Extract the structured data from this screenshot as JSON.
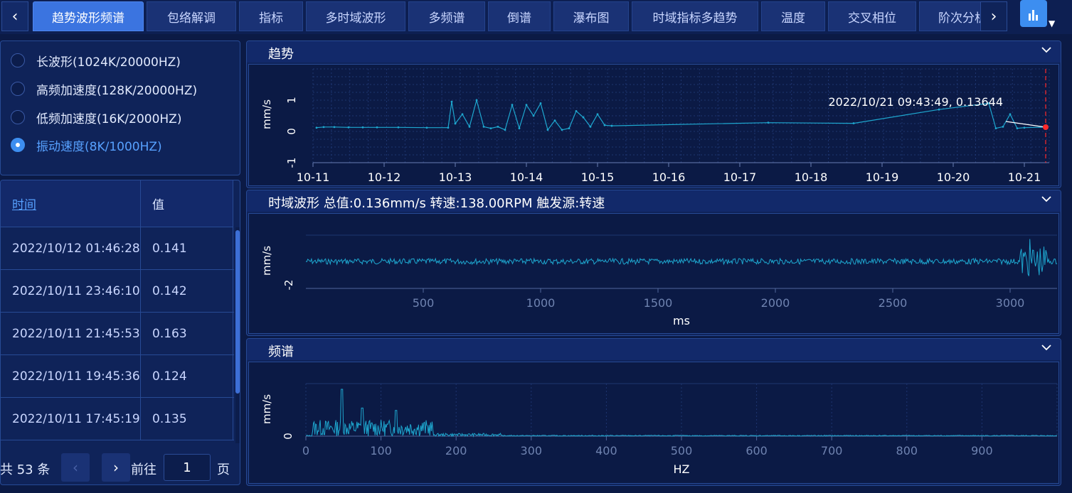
{
  "tabs": {
    "prev_arrow": "‹",
    "next_arrow": "›",
    "items": [
      {
        "label": "趋势波形频谱",
        "active": true
      },
      {
        "label": "包络解调"
      },
      {
        "label": "指标"
      },
      {
        "label": "多时域波形"
      },
      {
        "label": "多频谱"
      },
      {
        "label": "倒谱"
      },
      {
        "label": "瀑布图"
      },
      {
        "label": "时域指标多趋势"
      },
      {
        "label": "温度"
      },
      {
        "label": "交叉相位"
      },
      {
        "label": "阶次分析"
      }
    ],
    "menu_icon": "bar-chart-icon"
  },
  "radios": [
    {
      "label": "长波形(1024K/20000HZ)",
      "checked": false
    },
    {
      "label": "高频加速度(128K/20000HZ)",
      "checked": false
    },
    {
      "label": "低频加速度(16K/2000HZ)",
      "checked": false
    },
    {
      "label": "振动速度(8K/1000HZ)",
      "checked": true
    }
  ],
  "table": {
    "headers": {
      "time": "时间",
      "value": "值"
    },
    "rows": [
      {
        "time": "2022/10/12 01:46:28",
        "value": "0.141"
      },
      {
        "time": "2022/10/11 23:46:10",
        "value": "0.142"
      },
      {
        "time": "2022/10/11 21:45:53",
        "value": "0.163"
      },
      {
        "time": "2022/10/11 19:45:36",
        "value": "0.124"
      },
      {
        "time": "2022/10/11 17:45:19",
        "value": "0.135"
      }
    ]
  },
  "pager": {
    "total": "共 53 条",
    "prev": "‹",
    "next": "›",
    "goto": "前往",
    "page": "1",
    "unit": "页"
  },
  "sections": {
    "trend": {
      "title": "趋势"
    },
    "waveform": {
      "title": "时域波形 总值:0.136mm/s 转速:138.00RPM 触发源:转速"
    },
    "spectrum": {
      "title": "频谱"
    }
  },
  "chart_data": [
    {
      "type": "line",
      "title": "趋势",
      "ylabel": "mm/s",
      "ylim": [
        -1,
        2
      ],
      "yticks": [
        "-1",
        "0",
        "1"
      ],
      "xticks": [
        "10-11",
        "10-12",
        "10-13",
        "10-14",
        "10-15",
        "10-16",
        "10-17",
        "10-18",
        "10-19",
        "10-20",
        "10-21"
      ],
      "x": [
        0.05,
        0.15,
        0.3,
        0.5,
        0.7,
        0.9,
        1.2,
        1.6,
        1.9,
        1.95,
        2.0,
        2.1,
        2.2,
        2.3,
        2.4,
        2.5,
        2.6,
        2.7,
        2.8,
        2.9,
        3.0,
        3.1,
        3.2,
        3.3,
        3.4,
        3.5,
        3.6,
        3.7,
        3.8,
        3.9,
        4.0,
        4.1,
        4.2,
        6.4,
        7.6,
        8.8,
        9.5,
        9.6,
        9.7,
        9.8,
        9.9,
        10.0,
        10.3
      ],
      "y": [
        0.12,
        0.14,
        0.14,
        0.13,
        0.13,
        0.13,
        0.13,
        0.12,
        0.12,
        0.95,
        0.25,
        0.55,
        0.15,
        1.0,
        0.15,
        0.1,
        0.15,
        0.05,
        0.85,
        0.1,
        0.85,
        0.5,
        0.9,
        0.05,
        0.35,
        0.05,
        0.1,
        0.65,
        0.45,
        0.15,
        0.55,
        0.2,
        0.18,
        0.28,
        0.26,
        0.7,
        0.9,
        0.1,
        0.15,
        0.55,
        0.1,
        0.12,
        0.13644
      ],
      "marker": {
        "label": "2022/10/21 09:43:49, 0.13644",
        "x": 10.3,
        "y": 0.13644,
        "color": "#ff2a2a"
      },
      "series_color": "#1ea7cf"
    },
    {
      "type": "line",
      "title": "时域波形",
      "xlabel": "ms",
      "ylabel": "mm/s",
      "yticks": [
        "-2"
      ],
      "xticks": [
        "500",
        "1000",
        "1500",
        "2000",
        "2500",
        "3000"
      ],
      "xlim": [
        0,
        3200
      ],
      "note": "noise-like waveform around 0 with burst near 3050-3150 ms",
      "series_color": "#1ea7cf"
    },
    {
      "type": "line",
      "title": "频谱",
      "xlabel": "HZ",
      "ylabel": "mm/s",
      "yticks": [
        "0"
      ],
      "xticks": [
        "0",
        "100",
        "200",
        "300",
        "400",
        "500",
        "600",
        "700",
        "800",
        "900"
      ],
      "xlim": [
        0,
        1000
      ],
      "peaks": [
        {
          "x": 48,
          "y": 1.0
        },
        {
          "x": 75,
          "y": 0.6
        },
        {
          "x": 120,
          "y": 0.55
        }
      ],
      "series_color": "#1ea7cf"
    }
  ],
  "colors": {
    "accent": "#3d8ef0",
    "active_tab": "#3b74e0",
    "link": "#57a1ff",
    "marker": "#ff2a2a"
  }
}
